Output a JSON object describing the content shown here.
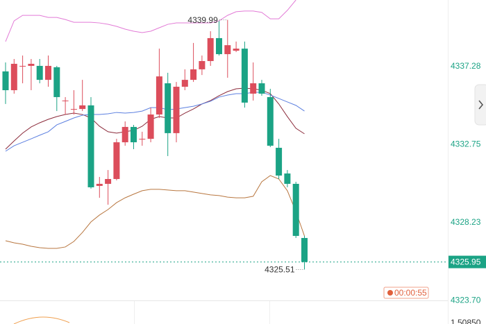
{
  "chart_data": {
    "type": "candlestick",
    "up_color": "#dc4d5b",
    "down_color": "#1ba385",
    "open": [
      4337.0,
      4335.91,
      4337.32,
      4337.32,
      4337.32,
      4336.51,
      4337.24,
      4335.31,
      4334.82,
      4334.82,
      4335.03,
      4330.36,
      4330.48,
      4330.76,
      4332.89,
      4333.78,
      4333.09,
      4333.09,
      4334.5,
      4336.31,
      4333.42,
      4336.11,
      4336.51,
      4337.12,
      4337.6,
      4338.93,
      4338.0,
      4338.2,
      4338.32,
      4335.71,
      4336.31,
      4335.51,
      4332.57,
      4331.08,
      4330.48,
      4327.34
    ],
    "high": [
      4337.52,
      4337.72,
      4337.92,
      4337.72,
      4337.72,
      4337.92,
      4337.32,
      4335.51,
      4335.91,
      4336.51,
      4335.51,
      4330.88,
      4331.28,
      4333.09,
      4334.1,
      4333.9,
      4333.5,
      4334.9,
      4338.32,
      4336.92,
      4336.39,
      4337.12,
      4338.65,
      4337.92,
      4339.33,
      4339.93,
      4339.99,
      4338.73,
      4338.73,
      4337.52,
      4336.51,
      4335.99,
      4333.09,
      4331.28,
      4330.6,
      4327.46
    ],
    "low": [
      4335.11,
      4335.71,
      4336.31,
      4335.91,
      4336.31,
      4336.11,
      4334.7,
      4334.5,
      4334.5,
      4334.7,
      4330.2,
      4329.67,
      4329.27,
      4330.68,
      4332.69,
      4332.49,
      4332.69,
      4332.89,
      4334.3,
      4332.09,
      4332.89,
      4335.91,
      4336.39,
      4336.79,
      4337.32,
      4337.92,
      4336.63,
      4338.12,
      4334.9,
      4335.31,
      4335.59,
      4332.61,
      4330.76,
      4330.28,
      4327.34,
      4325.51
    ],
    "close": [
      4335.91,
      4337.44,
      4337.32,
      4337.44,
      4336.51,
      4337.32,
      4335.51,
      4335.31,
      4334.82,
      4335.03,
      4330.28,
      4330.48,
      4330.76,
      4332.89,
      4333.78,
      4332.89,
      4333.09,
      4334.5,
      4336.71,
      4333.42,
      4336.11,
      4336.51,
      4337.12,
      4337.6,
      4338.93,
      4338.0,
      4338.52,
      4338.32,
      4335.19,
      4336.31,
      4335.71,
      4332.69,
      4330.96,
      4330.48,
      4327.46,
      4325.95
    ],
    "overlays": [
      {
        "color": "#e27ad6",
        "values": [
          4338.73,
          4339.93,
          4340.25,
          4340.25,
          4340.25,
          4340.13,
          4340.13,
          4340.01,
          4339.85,
          4339.85,
          4339.85,
          4339.81,
          4339.73,
          4339.61,
          4339.45,
          4339.33,
          4339.25,
          4339.33,
          4339.53,
          4339.73,
          4339.81,
          4339.81,
          4339.81,
          4339.81,
          4339.81,
          4339.93,
          4340.25,
          4340.46,
          4340.5,
          4340.5,
          4340.42,
          4340.05,
          4340.05,
          4340.54,
          4341.14,
          null
        ]
      },
      {
        "color": "#b8763f",
        "values": [
          4327.18,
          4327.06,
          4326.98,
          4326.86,
          4326.78,
          4326.74,
          4326.74,
          4326.82,
          4327.14,
          4327.66,
          4328.27,
          4328.67,
          4328.99,
          4329.39,
          4329.67,
          4329.88,
          4330.08,
          4330.16,
          4330.16,
          4330.12,
          4330.08,
          4330.08,
          4330.0,
          4329.92,
          4329.84,
          4329.8,
          4329.71,
          4329.67,
          4329.67,
          4329.76,
          4330.6,
          4330.96,
          4330.76,
          4330.08,
          4328.87,
          4327.46
        ]
      },
      {
        "color": "#8b2a3a",
        "values": [
          4332.49,
          4332.97,
          4333.42,
          4333.78,
          4334.02,
          4334.22,
          4334.38,
          4334.5,
          4334.58,
          4334.5,
          4334.3,
          4333.82,
          4333.5,
          4333.42,
          4333.5,
          4333.58,
          4333.82,
          4334.22,
          4334.38,
          4334.3,
          4334.3,
          4334.58,
          4334.82,
          4335.11,
          4335.31,
          4335.59,
          4335.83,
          4335.99,
          4336.03,
          4335.99,
          4335.91,
          4335.71,
          4335.11,
          4334.38,
          4333.7,
          4333.38
        ]
      },
      {
        "color": "#5b7fe0",
        "values": [
          4332.37,
          4332.69,
          4332.89,
          4333.09,
          4333.3,
          4333.5,
          4333.9,
          4334.1,
          4334.3,
          4334.46,
          4334.5,
          4334.5,
          4334.54,
          4334.62,
          4334.58,
          4334.62,
          4334.7,
          4334.9,
          4334.9,
          4334.78,
          4334.82,
          4334.9,
          4334.98,
          4335.11,
          4335.27,
          4335.51,
          4335.63,
          4335.71,
          4335.71,
          4335.79,
          4335.79,
          4335.63,
          4335.43,
          4335.23,
          4335.03,
          4334.7
        ]
      }
    ],
    "ylim": [
      4323.68,
      4341.14
    ],
    "yticks": [
      4337.28,
      4332.75,
      4328.23,
      {
        "value": 4323.7,
        "label": "4323.70"
      }
    ],
    "grid": false,
    "high_annotation": 4339.99,
    "low_annotation": 4325.51,
    "last_price": 4325.95,
    "last_price_color": "#1ba385",
    "countdown": "00:00:55",
    "lower_yticks": [
      {
        "value": 1.5085,
        "label": "1.50850"
      }
    ]
  }
}
